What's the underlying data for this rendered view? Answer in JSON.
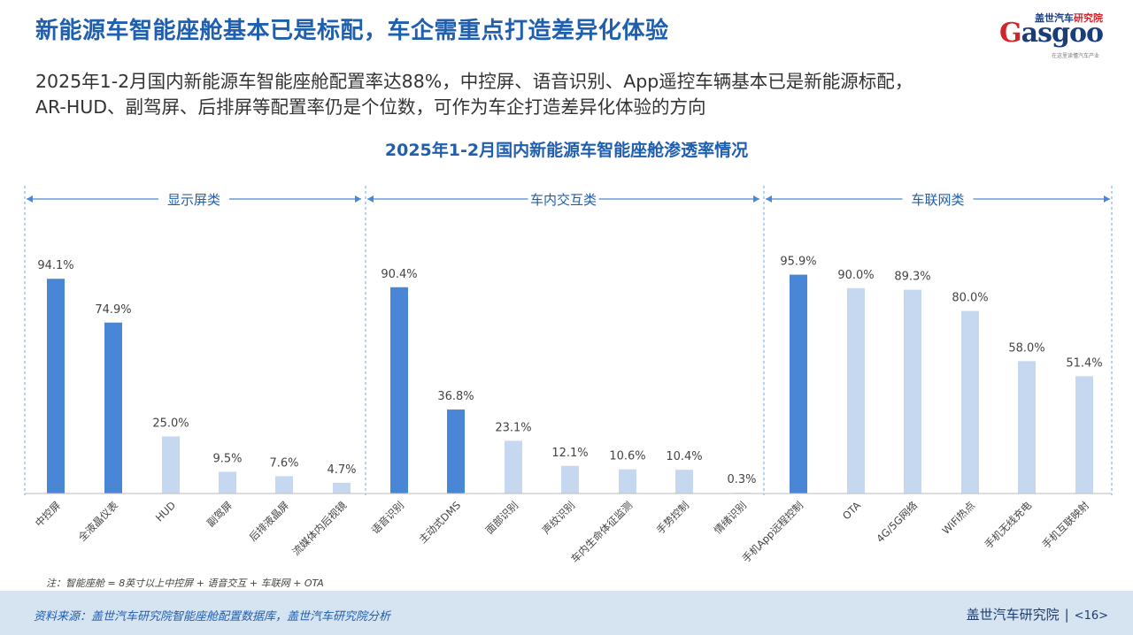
{
  "header": {
    "title": "新能源车智能座舱基本已是标配，车企需重点打造差异化体验",
    "subtitle_line1": "2025年1-2月国内新能源车智能座舱配置率达88%，中控屏、语音识别、App遥控车辆基本已是新能源标配，",
    "subtitle_line2": "AR-HUD、副驾屏、后排屏等配置率仍是个位数，可作为车企打造差异化体验的方向"
  },
  "logo": {
    "cn": "盖世汽车",
    "cn_red": "研究院",
    "en_g": "G",
    "en_rest": "asgoo",
    "sub": "在这里读懂汽车产业"
  },
  "chart_data": {
    "type": "bar",
    "title": "2025年1-2月国内新能源车智能座舱渗透率情况",
    "unit": "%",
    "ylim": [
      0,
      100
    ],
    "grid": false,
    "colors": {
      "dark": "#4a86d6",
      "light": "#c6d8f0"
    },
    "groups": [
      {
        "name": "显示屏类",
        "categories": [
          "中控屏",
          "全液晶仪表",
          "HUD",
          "副驾屏",
          "后排液晶屏",
          "流媒体内后视镜"
        ],
        "values": [
          94.1,
          74.9,
          25.0,
          9.5,
          7.6,
          4.7
        ],
        "labels": [
          "94.1%",
          "74.9%",
          "25.0%",
          "9.5%",
          "7.6%",
          "4.7%"
        ],
        "highlight": [
          true,
          true,
          false,
          false,
          false,
          false
        ]
      },
      {
        "name": "车内交互类",
        "categories": [
          "语音识别",
          "主动式DMS",
          "面部识别",
          "声纹识别",
          "车内生命体征监测",
          "手势控制",
          "情绪识别"
        ],
        "values": [
          90.4,
          36.8,
          23.1,
          12.1,
          10.6,
          10.4,
          0.3
        ],
        "labels": [
          "90.4%",
          "36.8%",
          "23.1%",
          "12.1%",
          "10.6%",
          "10.4%",
          "0.3%"
        ],
        "highlight": [
          true,
          true,
          false,
          false,
          false,
          false,
          false
        ]
      },
      {
        "name": "车联网类",
        "categories": [
          "手机App远程控制",
          "OTA",
          "4G/5G网络",
          "WiFi热点",
          "手机无线充电",
          "手机互联映射"
        ],
        "values": [
          95.9,
          90.0,
          89.3,
          80.0,
          58.0,
          51.4
        ],
        "labels": [
          "95.9%",
          "90.0%",
          "89.3%",
          "80.0%",
          "58.0%",
          "51.4%"
        ],
        "highlight": [
          true,
          false,
          false,
          false,
          false,
          false
        ]
      }
    ],
    "note": "注：智能座舱 = 8英寸以上中控屏 + 语音交互 + 车联网 + OTA"
  },
  "footer": {
    "source": "资料来源：盖世汽车研究院智能座舱配置数据库，盖世汽车研究院分析",
    "org": "盖世汽车研究院",
    "separator": "|",
    "page": "<16>"
  }
}
